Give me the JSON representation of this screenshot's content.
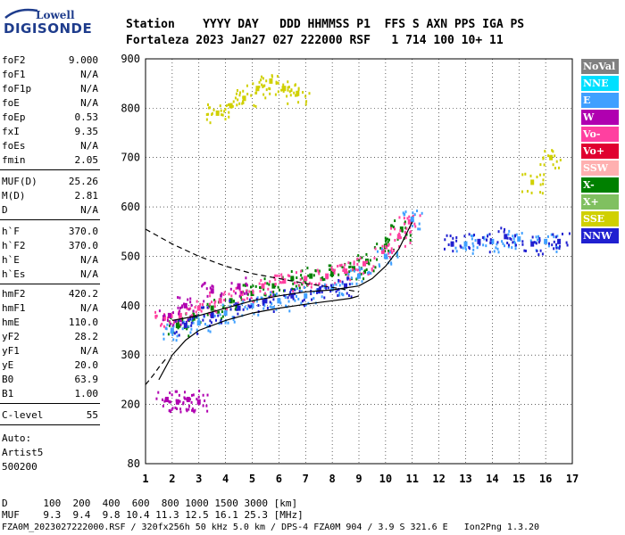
{
  "logo": {
    "top_text": "Lowell",
    "brand": "DIGISONDE"
  },
  "header": {
    "line1": "Station    YYYY DAY   DDD HHMMSS P1  FFS S AXN PPS IGA PS",
    "line2": "Fortaleza 2023 Jan27 027 222000 RSF   1 714 100 10+ 11"
  },
  "params_group1": [
    {
      "label": "foF2",
      "value": "9.000"
    },
    {
      "label": "foF1",
      "value": "N/A"
    },
    {
      "label": "foF1p",
      "value": "N/A"
    },
    {
      "label": "foE",
      "value": "N/A"
    },
    {
      "label": "foEp",
      "value": "0.53"
    },
    {
      "label": "fxI",
      "value": "9.35"
    },
    {
      "label": "foEs",
      "value": "N/A"
    },
    {
      "label": "fmin",
      "value": "2.05"
    }
  ],
  "params_group2": [
    {
      "label": "MUF(D)",
      "value": "25.26"
    },
    {
      "label": "M(D)",
      "value": "2.81"
    },
    {
      "label": "D",
      "value": "N/A"
    }
  ],
  "params_group3": [
    {
      "label": "h`F",
      "value": "370.0"
    },
    {
      "label": "h`F2",
      "value": "370.0"
    },
    {
      "label": "h`E",
      "value": "N/A"
    },
    {
      "label": "h`Es",
      "value": "N/A"
    }
  ],
  "params_group4": [
    {
      "label": "hmF2",
      "value": "420.2"
    },
    {
      "label": "hmF1",
      "value": "N/A"
    },
    {
      "label": "hmE",
      "value": "110.0"
    },
    {
      "label": "yF2",
      "value": "28.2"
    },
    {
      "label": "yF1",
      "value": "N/A"
    },
    {
      "label": "yE",
      "value": "20.0"
    },
    {
      "label": "B0",
      "value": "63.9"
    },
    {
      "label": "B1",
      "value": "1.00"
    }
  ],
  "params_group5": [
    {
      "label": "C-level",
      "value": "55"
    }
  ],
  "auto": {
    "line1": "Auto:",
    "line2": "Artist5",
    "line3": "500200"
  },
  "bottom": {
    "d_line": "D      100  200  400  600  800 1000 1500 3000 [km]",
    "muf_line": "MUF    9.3  9.4  9.8 10.4 11.3 12.5 16.1 25.3 [MHz]",
    "file_line": "FZA0M_2023027222000.RSF / 320fx256h 50 kHz 5.0 km / DPS-4 FZA0M 904 / 3.9 S 321.6 E   Ion2Png 1.3.20"
  },
  "legend": [
    {
      "label": "NoVal",
      "color": "#808080"
    },
    {
      "label": "NNE",
      "color": "#00e0ff"
    },
    {
      "label": "E",
      "color": "#40a0ff"
    },
    {
      "label": "W",
      "color": "#b000b0"
    },
    {
      "label": "Vo-",
      "color": "#ff40a0"
    },
    {
      "label": "Vo+",
      "color": "#e00030"
    },
    {
      "label": "SSW",
      "color": "#ffb0b0"
    },
    {
      "label": "X-",
      "color": "#008000"
    },
    {
      "label": "X+",
      "color": "#80c060"
    },
    {
      "label": "SSE",
      "color": "#d0d000"
    },
    {
      "label": "NNW",
      "color": "#2020d0"
    }
  ],
  "chart_data": {
    "type": "scatter",
    "title": "",
    "xlabel": "",
    "ylabel": "",
    "xlim": [
      1,
      17
    ],
    "ylim": [
      80,
      900
    ],
    "x_ticks": [
      "1",
      "2",
      "3",
      "4",
      "5",
      "6",
      "7",
      "8",
      "9",
      "10",
      "11",
      "12",
      "13",
      "14",
      "15",
      "16",
      "17"
    ],
    "y_ticks": [
      "80",
      "200",
      "300",
      "400",
      "500",
      "600",
      "700",
      "800",
      "900"
    ],
    "y_tick_values": [
      80,
      200,
      300,
      400,
      500,
      600,
      700,
      800,
      900
    ],
    "series": [
      {
        "name": "X-",
        "color": "#008000",
        "points": [
          [
            2.2,
            360
          ],
          [
            2.8,
            375
          ],
          [
            3.5,
            395
          ],
          [
            4.2,
            410
          ],
          [
            5.0,
            425
          ],
          [
            5.8,
            440
          ],
          [
            6.5,
            455
          ],
          [
            7.2,
            460
          ],
          [
            8.0,
            465
          ],
          [
            8.8,
            475
          ],
          [
            9.3,
            490
          ],
          [
            10.0,
            520
          ],
          [
            10.6,
            555
          ]
        ]
      },
      {
        "name": "Vo-",
        "color": "#ff40a0",
        "points": [
          [
            1.7,
            375
          ],
          [
            2.3,
            380
          ],
          [
            3.0,
            395
          ],
          [
            3.8,
            410
          ],
          [
            4.6,
            425
          ],
          [
            5.4,
            440
          ],
          [
            6.2,
            450
          ],
          [
            7.0,
            455
          ],
          [
            7.8,
            460
          ],
          [
            8.5,
            470
          ],
          [
            9.2,
            485
          ],
          [
            9.9,
            510
          ],
          [
            10.5,
            540
          ],
          [
            10.9,
            570
          ]
        ]
      },
      {
        "name": "E",
        "color": "#40a0ff",
        "points": [
          [
            2.0,
            350
          ],
          [
            3.0,
            365
          ],
          [
            4.0,
            385
          ],
          [
            5.0,
            400
          ],
          [
            6.0,
            410
          ],
          [
            7.0,
            420
          ],
          [
            8.0,
            435
          ],
          [
            9.0,
            460
          ],
          [
            10.0,
            500
          ],
          [
            11.0,
            575
          ],
          [
            13.0,
            525
          ],
          [
            14.0,
            530
          ],
          [
            15.0,
            535
          ],
          [
            16.0,
            530
          ]
        ]
      },
      {
        "name": "NNW",
        "color": "#2020d0",
        "points": [
          [
            2.5,
            360
          ],
          [
            3.5,
            380
          ],
          [
            4.5,
            395
          ],
          [
            5.5,
            410
          ],
          [
            6.5,
            420
          ],
          [
            7.5,
            430
          ],
          [
            8.5,
            440
          ],
          [
            12.5,
            525
          ],
          [
            13.5,
            530
          ],
          [
            14.5,
            540
          ],
          [
            15.5,
            525
          ],
          [
            16.5,
            530
          ]
        ]
      },
      {
        "name": "W",
        "color": "#b000b0",
        "points": [
          [
            1.8,
            210
          ],
          [
            2.2,
            205
          ],
          [
            2.6,
            210
          ],
          [
            3.0,
            205
          ],
          [
            1.9,
            380
          ],
          [
            2.5,
            400
          ],
          [
            3.5,
            430
          ],
          [
            4.5,
            440
          ]
        ]
      },
      {
        "name": "SSE",
        "color": "#d0d000",
        "points": [
          [
            3.7,
            790
          ],
          [
            4.2,
            805
          ],
          [
            4.7,
            820
          ],
          [
            5.2,
            840
          ],
          [
            5.7,
            855
          ],
          [
            6.2,
            840
          ],
          [
            6.7,
            830
          ],
          [
            15.5,
            650
          ],
          [
            16.2,
            700
          ]
        ]
      }
    ],
    "traces": [
      {
        "name": "profile-solid",
        "style": "solid",
        "points": [
          [
            1.5,
            250
          ],
          [
            2.0,
            300
          ],
          [
            2.5,
            330
          ],
          [
            3.0,
            350
          ],
          [
            4.0,
            370
          ],
          [
            5.0,
            385
          ],
          [
            6.0,
            395
          ],
          [
            7.0,
            403
          ],
          [
            8.0,
            410
          ],
          [
            8.7,
            415
          ],
          [
            9.0,
            420
          ]
        ]
      },
      {
        "name": "profile-dashed",
        "style": "dashed",
        "points": [
          [
            1.0,
            555
          ],
          [
            1.5,
            540
          ],
          [
            2.0,
            525
          ],
          [
            3.0,
            500
          ],
          [
            4.0,
            480
          ],
          [
            5.0,
            465
          ],
          [
            6.0,
            455
          ],
          [
            7.0,
            445
          ],
          [
            8.0,
            437
          ],
          [
            9.0,
            428
          ]
        ]
      },
      {
        "name": "profile-dashed-low",
        "style": "dashed",
        "points": [
          [
            1.0,
            240
          ],
          [
            1.3,
            260
          ],
          [
            1.5,
            275
          ],
          [
            1.8,
            295
          ]
        ]
      },
      {
        "name": "trace-fit",
        "style": "solid",
        "points": [
          [
            2.0,
            370
          ],
          [
            3.0,
            380
          ],
          [
            4.0,
            395
          ],
          [
            5.0,
            410
          ],
          [
            6.0,
            420
          ],
          [
            7.0,
            428
          ],
          [
            8.0,
            432
          ],
          [
            9.0,
            440
          ],
          [
            9.5,
            455
          ],
          [
            10.0,
            480
          ],
          [
            10.5,
            515
          ],
          [
            11.0,
            570
          ]
        ]
      }
    ]
  }
}
